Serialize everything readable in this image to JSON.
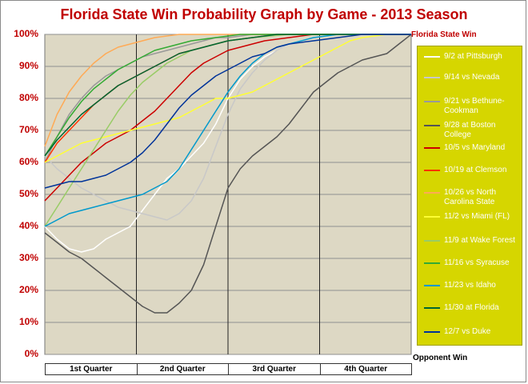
{
  "chart_data": {
    "type": "line",
    "title": "Florida State Win Probability Graph by Game - 2013 Season",
    "ylabel_top": "Florida State Win",
    "ylabel_bottom": "Opponent Win",
    "ylim": [
      0,
      100
    ],
    "yticks": [
      "0%",
      "10%",
      "20%",
      "30%",
      "40%",
      "50%",
      "60%",
      "70%",
      "80%",
      "90%",
      "100%"
    ],
    "xlabel_quarters": [
      "1st Quarter",
      "2nd Quarter",
      "3rd Quarter",
      "4th Quarter"
    ],
    "xlim": [
      0,
      60
    ],
    "grid": true,
    "legend_position": "right",
    "series": [
      {
        "name": "9/2 at Pittsburgh",
        "color": "#ffffff",
        "points": [
          [
            0,
            40
          ],
          [
            2,
            36
          ],
          [
            4,
            33
          ],
          [
            6,
            32
          ],
          [
            8,
            33
          ],
          [
            10,
            36
          ],
          [
            12,
            38
          ],
          [
            14,
            40
          ],
          [
            16,
            45
          ],
          [
            18,
            50
          ],
          [
            20,
            55
          ],
          [
            22,
            58
          ],
          [
            24,
            62
          ],
          [
            26,
            66
          ],
          [
            28,
            72
          ],
          [
            30,
            80
          ],
          [
            32,
            86
          ],
          [
            34,
            90
          ],
          [
            36,
            93
          ],
          [
            38,
            95
          ],
          [
            40,
            97
          ],
          [
            44,
            99
          ],
          [
            48,
            100
          ],
          [
            52,
            100
          ],
          [
            60,
            100
          ]
        ]
      },
      {
        "name": "9/14 vs Nevada",
        "color": "#c8c8c8",
        "points": [
          [
            0,
            62
          ],
          [
            2,
            58
          ],
          [
            4,
            55
          ],
          [
            6,
            52
          ],
          [
            8,
            50
          ],
          [
            10,
            48
          ],
          [
            12,
            46
          ],
          [
            14,
            45
          ],
          [
            16,
            44
          ],
          [
            18,
            43
          ],
          [
            20,
            42
          ],
          [
            22,
            44
          ],
          [
            24,
            48
          ],
          [
            26,
            55
          ],
          [
            28,
            65
          ],
          [
            30,
            75
          ],
          [
            32,
            83
          ],
          [
            34,
            88
          ],
          [
            36,
            92
          ],
          [
            38,
            95
          ],
          [
            40,
            97
          ],
          [
            44,
            99
          ],
          [
            48,
            100
          ],
          [
            60,
            100
          ]
        ]
      },
      {
        "name": "9/21 vs Bethune-Cookman",
        "color": "#999999",
        "points": [
          [
            0,
            60
          ],
          [
            2,
            68
          ],
          [
            4,
            75
          ],
          [
            6,
            80
          ],
          [
            8,
            84
          ],
          [
            10,
            87
          ],
          [
            12,
            89
          ],
          [
            14,
            91
          ],
          [
            16,
            93
          ],
          [
            18,
            94
          ],
          [
            20,
            95
          ],
          [
            22,
            96
          ],
          [
            24,
            97
          ],
          [
            26,
            98
          ],
          [
            28,
            99
          ],
          [
            30,
            99
          ],
          [
            34,
            100
          ],
          [
            60,
            100
          ]
        ]
      },
      {
        "name": "9/28 at Boston College",
        "color": "#555555",
        "points": [
          [
            0,
            38
          ],
          [
            2,
            35
          ],
          [
            4,
            32
          ],
          [
            6,
            30
          ],
          [
            8,
            27
          ],
          [
            10,
            24
          ],
          [
            12,
            21
          ],
          [
            14,
            18
          ],
          [
            16,
            15
          ],
          [
            18,
            13
          ],
          [
            20,
            13
          ],
          [
            22,
            16
          ],
          [
            24,
            20
          ],
          [
            26,
            28
          ],
          [
            28,
            40
          ],
          [
            30,
            52
          ],
          [
            32,
            58
          ],
          [
            34,
            62
          ],
          [
            36,
            65
          ],
          [
            38,
            68
          ],
          [
            40,
            72
          ],
          [
            42,
            77
          ],
          [
            44,
            82
          ],
          [
            46,
            85
          ],
          [
            48,
            88
          ],
          [
            50,
            90
          ],
          [
            52,
            92
          ],
          [
            54,
            93
          ],
          [
            56,
            94
          ],
          [
            58,
            97
          ],
          [
            60,
            100
          ]
        ]
      },
      {
        "name": "10/5 vs Maryland",
        "color": "#cc0000",
        "points": [
          [
            0,
            48
          ],
          [
            2,
            52
          ],
          [
            4,
            56
          ],
          [
            6,
            60
          ],
          [
            8,
            63
          ],
          [
            10,
            66
          ],
          [
            12,
            68
          ],
          [
            14,
            70
          ],
          [
            16,
            73
          ],
          [
            18,
            76
          ],
          [
            20,
            80
          ],
          [
            22,
            84
          ],
          [
            24,
            88
          ],
          [
            26,
            91
          ],
          [
            28,
            93
          ],
          [
            30,
            95
          ],
          [
            32,
            96
          ],
          [
            34,
            97
          ],
          [
            36,
            98
          ],
          [
            40,
            99
          ],
          [
            44,
            100
          ],
          [
            60,
            100
          ]
        ]
      },
      {
        "name": "10/19 at Clemson",
        "color": "#ff3300",
        "points": [
          [
            0,
            60
          ],
          [
            2,
            66
          ],
          [
            4,
            70
          ],
          [
            6,
            74
          ],
          [
            8,
            78
          ],
          [
            10,
            81
          ],
          [
            12,
            84
          ],
          [
            14,
            86
          ],
          [
            16,
            88
          ],
          [
            18,
            90
          ],
          [
            20,
            92
          ],
          [
            22,
            94
          ],
          [
            24,
            95
          ],
          [
            26,
            96
          ],
          [
            28,
            97
          ],
          [
            30,
            98
          ],
          [
            34,
            99
          ],
          [
            38,
            100
          ],
          [
            60,
            100
          ]
        ]
      },
      {
        "name": "10/26 vs North Carolina State",
        "color": "#ffaa55",
        "points": [
          [
            0,
            65
          ],
          [
            2,
            75
          ],
          [
            4,
            82
          ],
          [
            6,
            87
          ],
          [
            8,
            91
          ],
          [
            10,
            94
          ],
          [
            12,
            96
          ],
          [
            14,
            97
          ],
          [
            16,
            98
          ],
          [
            18,
            99
          ],
          [
            22,
            100
          ],
          [
            60,
            100
          ]
        ]
      },
      {
        "name": "11/2 vs Miami (FL)",
        "color": "#ffff33",
        "points": [
          [
            0,
            60
          ],
          [
            2,
            62
          ],
          [
            4,
            64
          ],
          [
            6,
            66
          ],
          [
            8,
            67
          ],
          [
            10,
            68
          ],
          [
            12,
            69
          ],
          [
            14,
            70
          ],
          [
            16,
            71
          ],
          [
            18,
            72
          ],
          [
            20,
            73
          ],
          [
            22,
            74
          ],
          [
            24,
            76
          ],
          [
            26,
            78
          ],
          [
            28,
            80
          ],
          [
            30,
            80
          ],
          [
            32,
            81
          ],
          [
            34,
            82
          ],
          [
            36,
            84
          ],
          [
            38,
            86
          ],
          [
            40,
            88
          ],
          [
            42,
            90
          ],
          [
            44,
            92
          ],
          [
            46,
            94
          ],
          [
            48,
            96
          ],
          [
            50,
            98
          ],
          [
            52,
            99
          ],
          [
            56,
            100
          ],
          [
            60,
            100
          ]
        ]
      },
      {
        "name": "11/9 at Wake Forest",
        "color": "#99cc66",
        "points": [
          [
            0,
            40
          ],
          [
            2,
            46
          ],
          [
            4,
            52
          ],
          [
            6,
            58
          ],
          [
            8,
            64
          ],
          [
            10,
            70
          ],
          [
            12,
            76
          ],
          [
            14,
            81
          ],
          [
            16,
            85
          ],
          [
            18,
            88
          ],
          [
            20,
            91
          ],
          [
            22,
            93
          ],
          [
            24,
            95
          ],
          [
            26,
            96
          ],
          [
            28,
            97
          ],
          [
            30,
            98
          ],
          [
            34,
            99
          ],
          [
            40,
            100
          ],
          [
            60,
            100
          ]
        ]
      },
      {
        "name": "11/16 vs Syracuse",
        "color": "#33aa33",
        "points": [
          [
            0,
            62
          ],
          [
            2,
            68
          ],
          [
            4,
            74
          ],
          [
            6,
            79
          ],
          [
            8,
            83
          ],
          [
            10,
            86
          ],
          [
            12,
            89
          ],
          [
            14,
            91
          ],
          [
            16,
            93
          ],
          [
            18,
            95
          ],
          [
            20,
            96
          ],
          [
            22,
            97
          ],
          [
            24,
            98
          ],
          [
            28,
            99
          ],
          [
            32,
            100
          ],
          [
            60,
            100
          ]
        ]
      },
      {
        "name": "11/23 vs Idaho",
        "color": "#0099cc",
        "points": [
          [
            0,
            40
          ],
          [
            2,
            42
          ],
          [
            4,
            44
          ],
          [
            6,
            45
          ],
          [
            8,
            46
          ],
          [
            10,
            47
          ],
          [
            12,
            48
          ],
          [
            14,
            49
          ],
          [
            16,
            50
          ],
          [
            18,
            52
          ],
          [
            20,
            54
          ],
          [
            22,
            58
          ],
          [
            24,
            64
          ],
          [
            26,
            70
          ],
          [
            28,
            76
          ],
          [
            30,
            82
          ],
          [
            32,
            87
          ],
          [
            34,
            91
          ],
          [
            36,
            94
          ],
          [
            38,
            96
          ],
          [
            40,
            97
          ],
          [
            44,
            99
          ],
          [
            48,
            100
          ],
          [
            60,
            100
          ]
        ]
      },
      {
        "name": "11/30 at Florida",
        "color": "#006633",
        "points": [
          [
            0,
            62
          ],
          [
            2,
            67
          ],
          [
            4,
            71
          ],
          [
            6,
            75
          ],
          [
            8,
            78
          ],
          [
            10,
            81
          ],
          [
            12,
            84
          ],
          [
            14,
            86
          ],
          [
            16,
            88
          ],
          [
            18,
            90
          ],
          [
            20,
            92
          ],
          [
            22,
            94
          ],
          [
            24,
            95
          ],
          [
            26,
            96
          ],
          [
            28,
            97
          ],
          [
            30,
            98
          ],
          [
            34,
            99
          ],
          [
            38,
            100
          ],
          [
            60,
            100
          ]
        ]
      },
      {
        "name": "12/7 vs Duke",
        "color": "#003399",
        "points": [
          [
            0,
            52
          ],
          [
            2,
            53
          ],
          [
            4,
            54
          ],
          [
            6,
            54
          ],
          [
            8,
            55
          ],
          [
            10,
            56
          ],
          [
            12,
            58
          ],
          [
            14,
            60
          ],
          [
            16,
            63
          ],
          [
            18,
            67
          ],
          [
            20,
            72
          ],
          [
            22,
            77
          ],
          [
            24,
            81
          ],
          [
            26,
            84
          ],
          [
            28,
            87
          ],
          [
            30,
            89
          ],
          [
            32,
            91
          ],
          [
            34,
            93
          ],
          [
            36,
            94
          ],
          [
            38,
            96
          ],
          [
            40,
            97
          ],
          [
            44,
            98
          ],
          [
            48,
            99
          ],
          [
            52,
            100
          ],
          [
            60,
            100
          ]
        ]
      }
    ]
  }
}
